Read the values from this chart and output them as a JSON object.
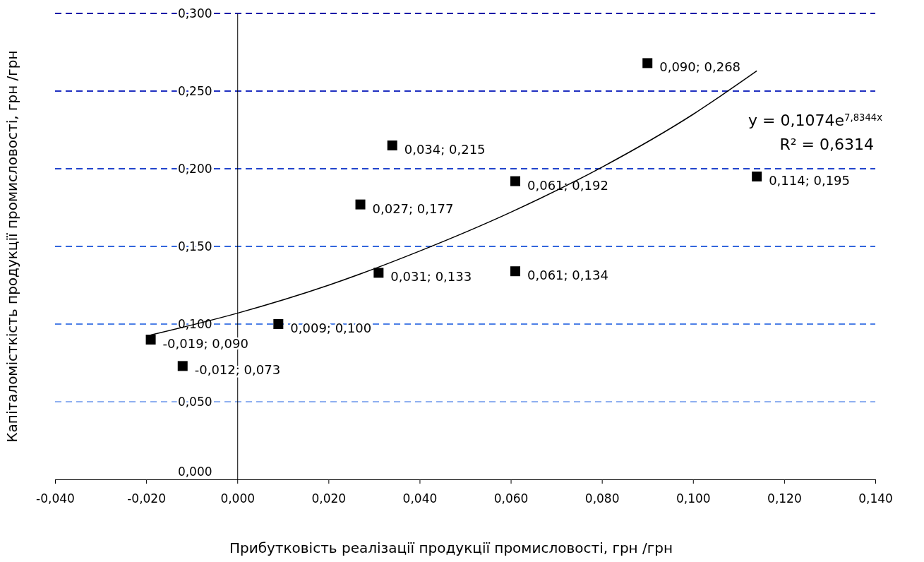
{
  "chart_data": {
    "type": "scatter",
    "xlabel": "Прибутковість реалізації продукції промисловості, грн /грн",
    "ylabel": "Капіталомісткість продукції промисловості, грн /грн",
    "xlim": [
      -0.04,
      0.14
    ],
    "xticks": [
      {
        "value": -0.04,
        "label": "-0,040"
      },
      {
        "value": -0.02,
        "label": "-0,020"
      },
      {
        "value": 0,
        "label": "0,000"
      },
      {
        "value": 0.02,
        "label": "0,020"
      },
      {
        "value": 0.04,
        "label": "0,040"
      },
      {
        "value": 0.06,
        "label": "0,060"
      },
      {
        "value": 0.08,
        "label": "0,080"
      },
      {
        "value": 0.1,
        "label": "0,100"
      },
      {
        "value": 0.12,
        "label": "0,120"
      },
      {
        "value": 0.14,
        "label": "0,140"
      }
    ],
    "ylim": [
      0,
      0.3
    ],
    "yticks": [
      {
        "value": 0,
        "label": "0,000"
      },
      {
        "value": 0.05,
        "label": "0,050"
      },
      {
        "value": 0.1,
        "label": "0,100"
      },
      {
        "value": 0.15,
        "label": "0,150"
      },
      {
        "value": 0.2,
        "label": "0,200"
      },
      {
        "value": 0.25,
        "label": "0,250"
      },
      {
        "value": 0.3,
        "label": "0,300"
      }
    ],
    "ref_lines": [
      {
        "axis": "y",
        "value": 0.05,
        "color": "#8fb0f0",
        "line_style": "dashed"
      },
      {
        "axis": "y",
        "value": 0.1,
        "color": "#4d80e6",
        "line_style": "dashed"
      },
      {
        "axis": "y",
        "value": 0.15,
        "color": "#3366dd",
        "line_style": "dashed"
      },
      {
        "axis": "y",
        "value": 0.2,
        "color": "#2244cc",
        "line_style": "dashed"
      },
      {
        "axis": "y",
        "value": 0.25,
        "color": "#1f2fc0",
        "line_style": "dashed"
      },
      {
        "axis": "y",
        "value": 0.3,
        "color": "#1a1aa8",
        "line_style": "dashed"
      }
    ],
    "marker": "square",
    "series": [
      {
        "color": "#000000",
        "x": [
          0.09,
          0.034,
          0.061,
          0.114,
          0.027,
          0.031,
          0.061,
          0.009,
          -0.019,
          -0.012
        ],
        "values": [
          0.268,
          0.215,
          0.192,
          0.195,
          0.177,
          0.133,
          0.134,
          0.1,
          0.09,
          0.073
        ],
        "value_labels": [
          "0,090; 0,268",
          "0,034; 0,215",
          "0,061; 0,192",
          "0,114; 0,195",
          "0,027; 0,177",
          "0,031; 0,133",
          "0,061; 0,134",
          "0,009; 0,100",
          "-0,019; 0,090",
          "-0,012; 0,073"
        ]
      },
      {
        "type": "line",
        "color": "#000000",
        "marker": "none",
        "line_style": "solid",
        "x": [
          -0.019,
          0,
          0.02,
          0.04,
          0.06,
          0.08,
          0.1,
          0.114
        ],
        "values": [
          0.093,
          0.107,
          0.125,
          0.147,
          0.172,
          0.201,
          0.235,
          0.263
        ]
      }
    ],
    "annotations": [
      "y = 0,1074e$^{7,8344x}$",
      "R² = 0,6314"
    ]
  }
}
